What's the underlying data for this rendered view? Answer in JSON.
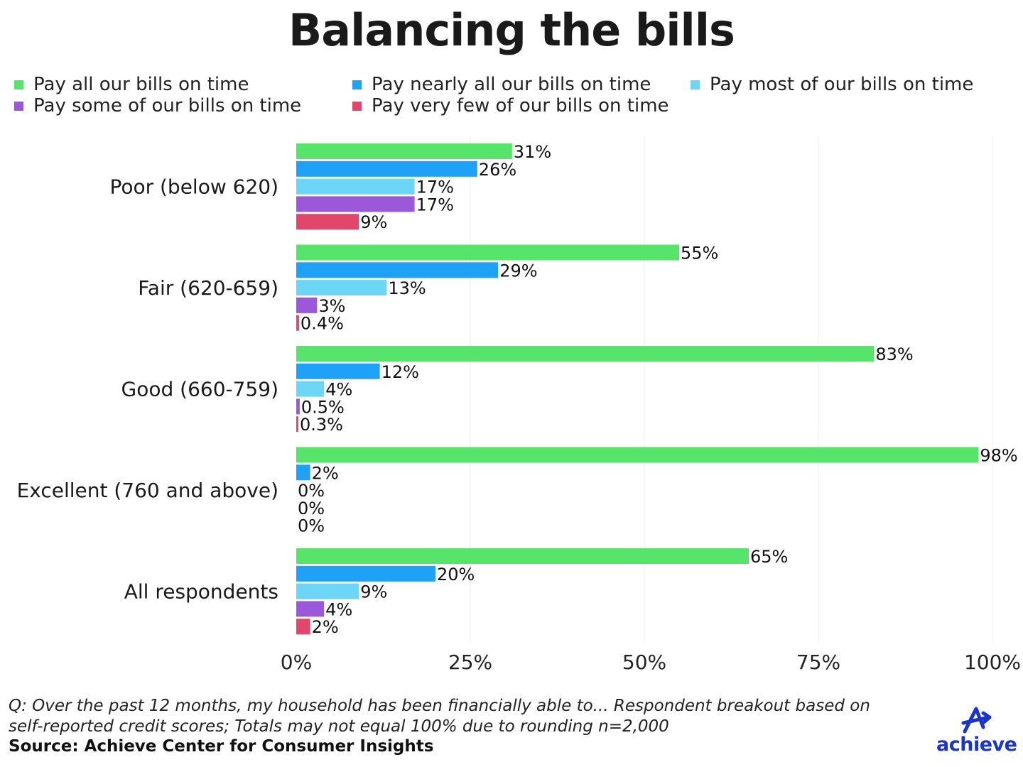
{
  "chart_data": {
    "type": "bar",
    "orientation": "horizontal",
    "title": "Balancing the bills",
    "categories": [
      "Poor (below 620)",
      "Fair (620-659)",
      "Good (660-759)",
      "Excellent (760 and above)",
      "All respondents"
    ],
    "series": [
      {
        "name": "Pay all our bills on time",
        "color": "#56e46b",
        "values": [
          31,
          55,
          83,
          98,
          65
        ],
        "labels": [
          "31%",
          "55%",
          "83%",
          "98%",
          "65%"
        ]
      },
      {
        "name": "Pay nearly all our bills on time",
        "color": "#1fa1f7",
        "values": [
          26,
          29,
          12,
          2,
          20
        ],
        "labels": [
          "26%",
          "29%",
          "12%",
          "2%",
          "20%"
        ]
      },
      {
        "name": "Pay most of our bills on time",
        "color": "#6dd6f7",
        "values": [
          17,
          13,
          4,
          0,
          9
        ],
        "labels": [
          "17%",
          "13%",
          "4%",
          "0%",
          "9%"
        ]
      },
      {
        "name": "Pay some of our bills on time",
        "color": "#9b59d9",
        "values": [
          17,
          3,
          0.5,
          0,
          4
        ],
        "labels": [
          "17%",
          "3%",
          "0.5%",
          "0%",
          "4%"
        ]
      },
      {
        "name": "Pay very few of our bills on time",
        "color": "#e2466a",
        "values": [
          9,
          0.4,
          0.3,
          0,
          2
        ],
        "labels": [
          "9%",
          "0.4%",
          "0.3%",
          "0%",
          "2%"
        ]
      }
    ],
    "xlim": [
      0,
      100
    ],
    "xticks": [
      0,
      25,
      50,
      75,
      100
    ],
    "xtick_labels": [
      "0%",
      "25%",
      "50%",
      "75%",
      "100%"
    ],
    "grid": "vertical",
    "legend_position": "top"
  },
  "footnote": "Q: Over the past 12 months, my household has been financially able to... Respondent breakout based on self-reported credit scores; Totals may not equal 100% due to rounding n=2,000",
  "source": "Source: Achieve Center for Consumer Insights",
  "logo": {
    "text": "achieve",
    "color": "#1a35c9"
  }
}
